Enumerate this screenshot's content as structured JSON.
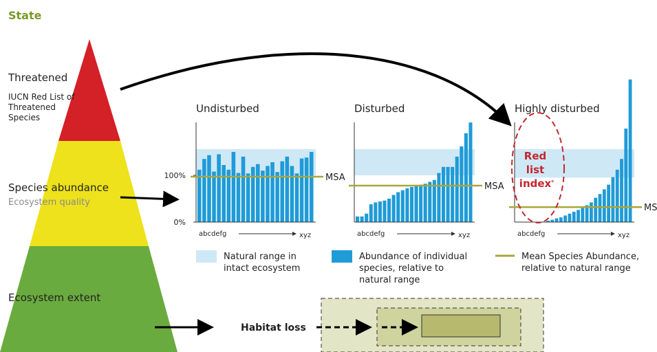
{
  "header": {
    "title": "State"
  },
  "pyramid": {
    "levels": [
      {
        "title": "Threatened",
        "subtitle_lines": [
          "IUCN Red List of",
          "Threatened",
          "Species"
        ]
      },
      {
        "title": "Species abundance",
        "subtitle_lines": [
          "Ecosystem quality"
        ]
      },
      {
        "title": "Ecosystem extent",
        "subtitle_lines": []
      }
    ]
  },
  "panels": [
    {
      "title": "Undisturbed",
      "x_start": "abcdefg",
      "x_end": "xyz",
      "msa_label": "MSA",
      "msa": 97,
      "natural_range": [
        100,
        156
      ],
      "yticks": [
        {
          "value": 0,
          "label": "0%"
        },
        {
          "value": 100,
          "label": "100%"
        }
      ],
      "values": [
        112,
        135,
        143,
        108,
        145,
        122,
        112,
        150,
        105,
        140,
        104,
        118,
        124,
        110,
        120,
        128,
        107,
        130,
        140,
        120,
        104,
        136,
        138,
        150
      ]
    },
    {
      "title": "Disturbed",
      "x_start": "abcdefg",
      "x_end": "xyz",
      "msa_label": "MSA",
      "msa": 78,
      "natural_range": [
        100,
        156
      ],
      "values": [
        12,
        12,
        18,
        38,
        42,
        44,
        46,
        50,
        58,
        64,
        68,
        72,
        75,
        78,
        80,
        82,
        86,
        90,
        105,
        118,
        118,
        118,
        140,
        162,
        190,
        213
      ]
    },
    {
      "title": "Highly disturbed",
      "x_start": "abcdefg",
      "x_end": "xyz",
      "msa_label": "MSA",
      "msa": 32,
      "natural_range": [
        95,
        156
      ],
      "red_list": {
        "lines": [
          "Red",
          "list",
          "index"
        ],
        "footnote_mark": "*"
      },
      "values": [
        0,
        0,
        0,
        0,
        0,
        0,
        1,
        3,
        5,
        8,
        10,
        14,
        18,
        22,
        26,
        30,
        36,
        42,
        52,
        60,
        70,
        80,
        96,
        112,
        135,
        200,
        305
      ]
    }
  ],
  "legend": [
    {
      "lines": [
        "Natural range in",
        "intact ecosystem"
      ]
    },
    {
      "lines": [
        "Abundance of individual",
        "species, relative to",
        "natural range"
      ]
    },
    {
      "lines": [
        "Mean Species Abundance,",
        "relative to natural range"
      ]
    }
  ],
  "habitat": {
    "label": "Habitat loss"
  }
}
